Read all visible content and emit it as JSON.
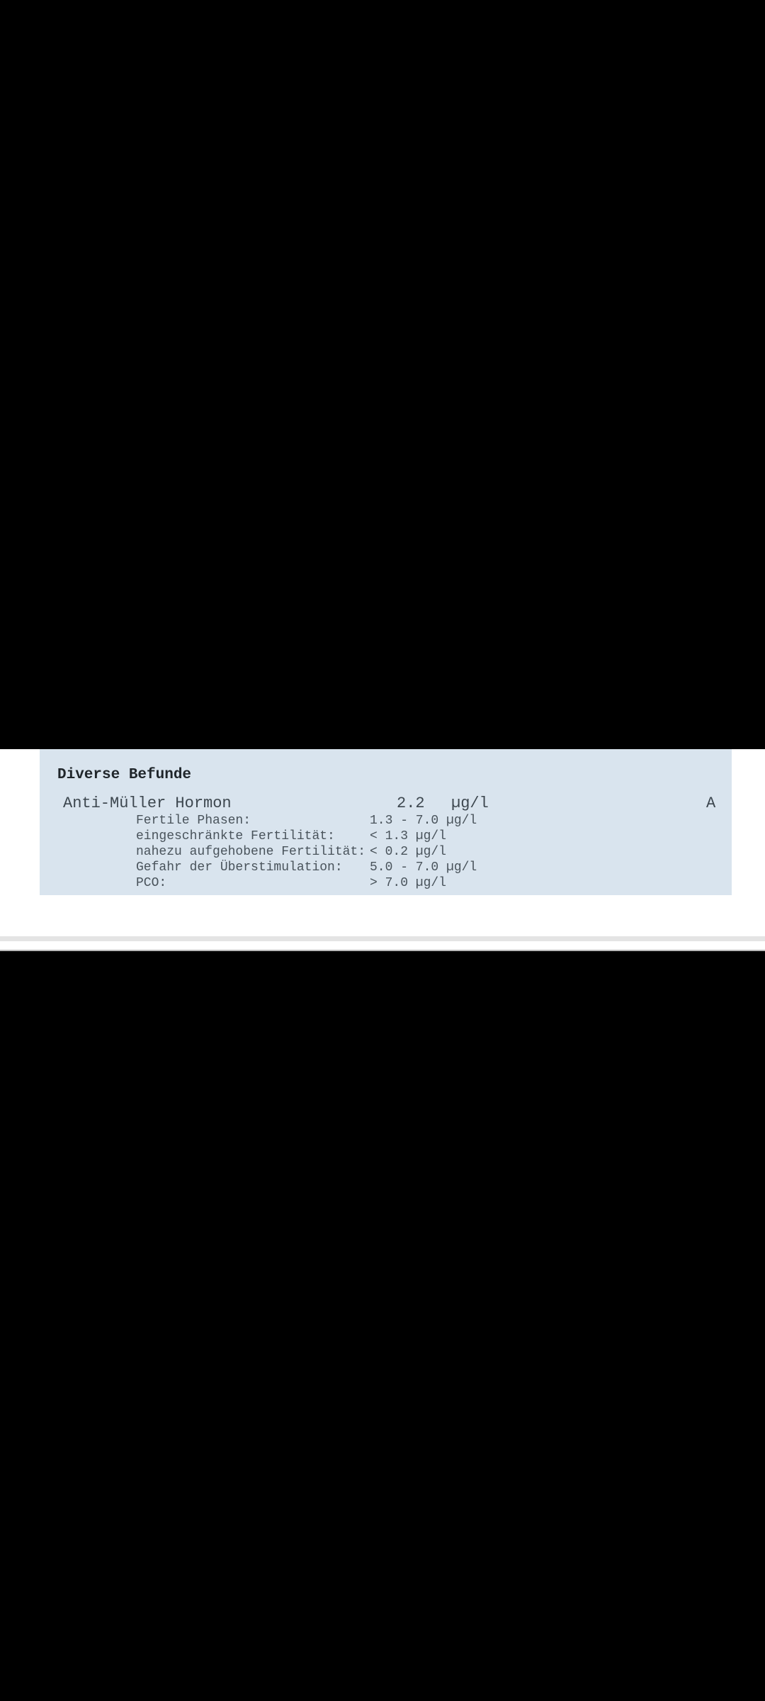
{
  "colors": {
    "page_bg": "#000000",
    "band_bg": "#ffffff",
    "box_bg": "#d9e4ee",
    "divider": "#e4e4e4",
    "heading_text": "#20262b",
    "primary_text": "#3d474f",
    "secondary_text": "#49535b"
  },
  "report": {
    "section_title": "Diverse Befunde",
    "test": {
      "name": "Anti-Müller Hormon",
      "value": "2.2",
      "unit": "µg/l",
      "flag": "A",
      "reference_ranges": [
        {
          "label": "Fertile Phasen:",
          "range": "1.3 - 7.0 µg/l"
        },
        {
          "label": "eingeschränkte Fertilität:",
          "range": "< 1.3 µg/l"
        },
        {
          "label": "nahezu aufgehobene Fertilität:",
          "range": "< 0.2 µg/l"
        },
        {
          "label": "Gefahr der Überstimulation:",
          "range": "5.0 - 7.0 µg/l"
        },
        {
          "label": "PCO:",
          "range": "> 7.0 µg/l"
        }
      ]
    }
  }
}
